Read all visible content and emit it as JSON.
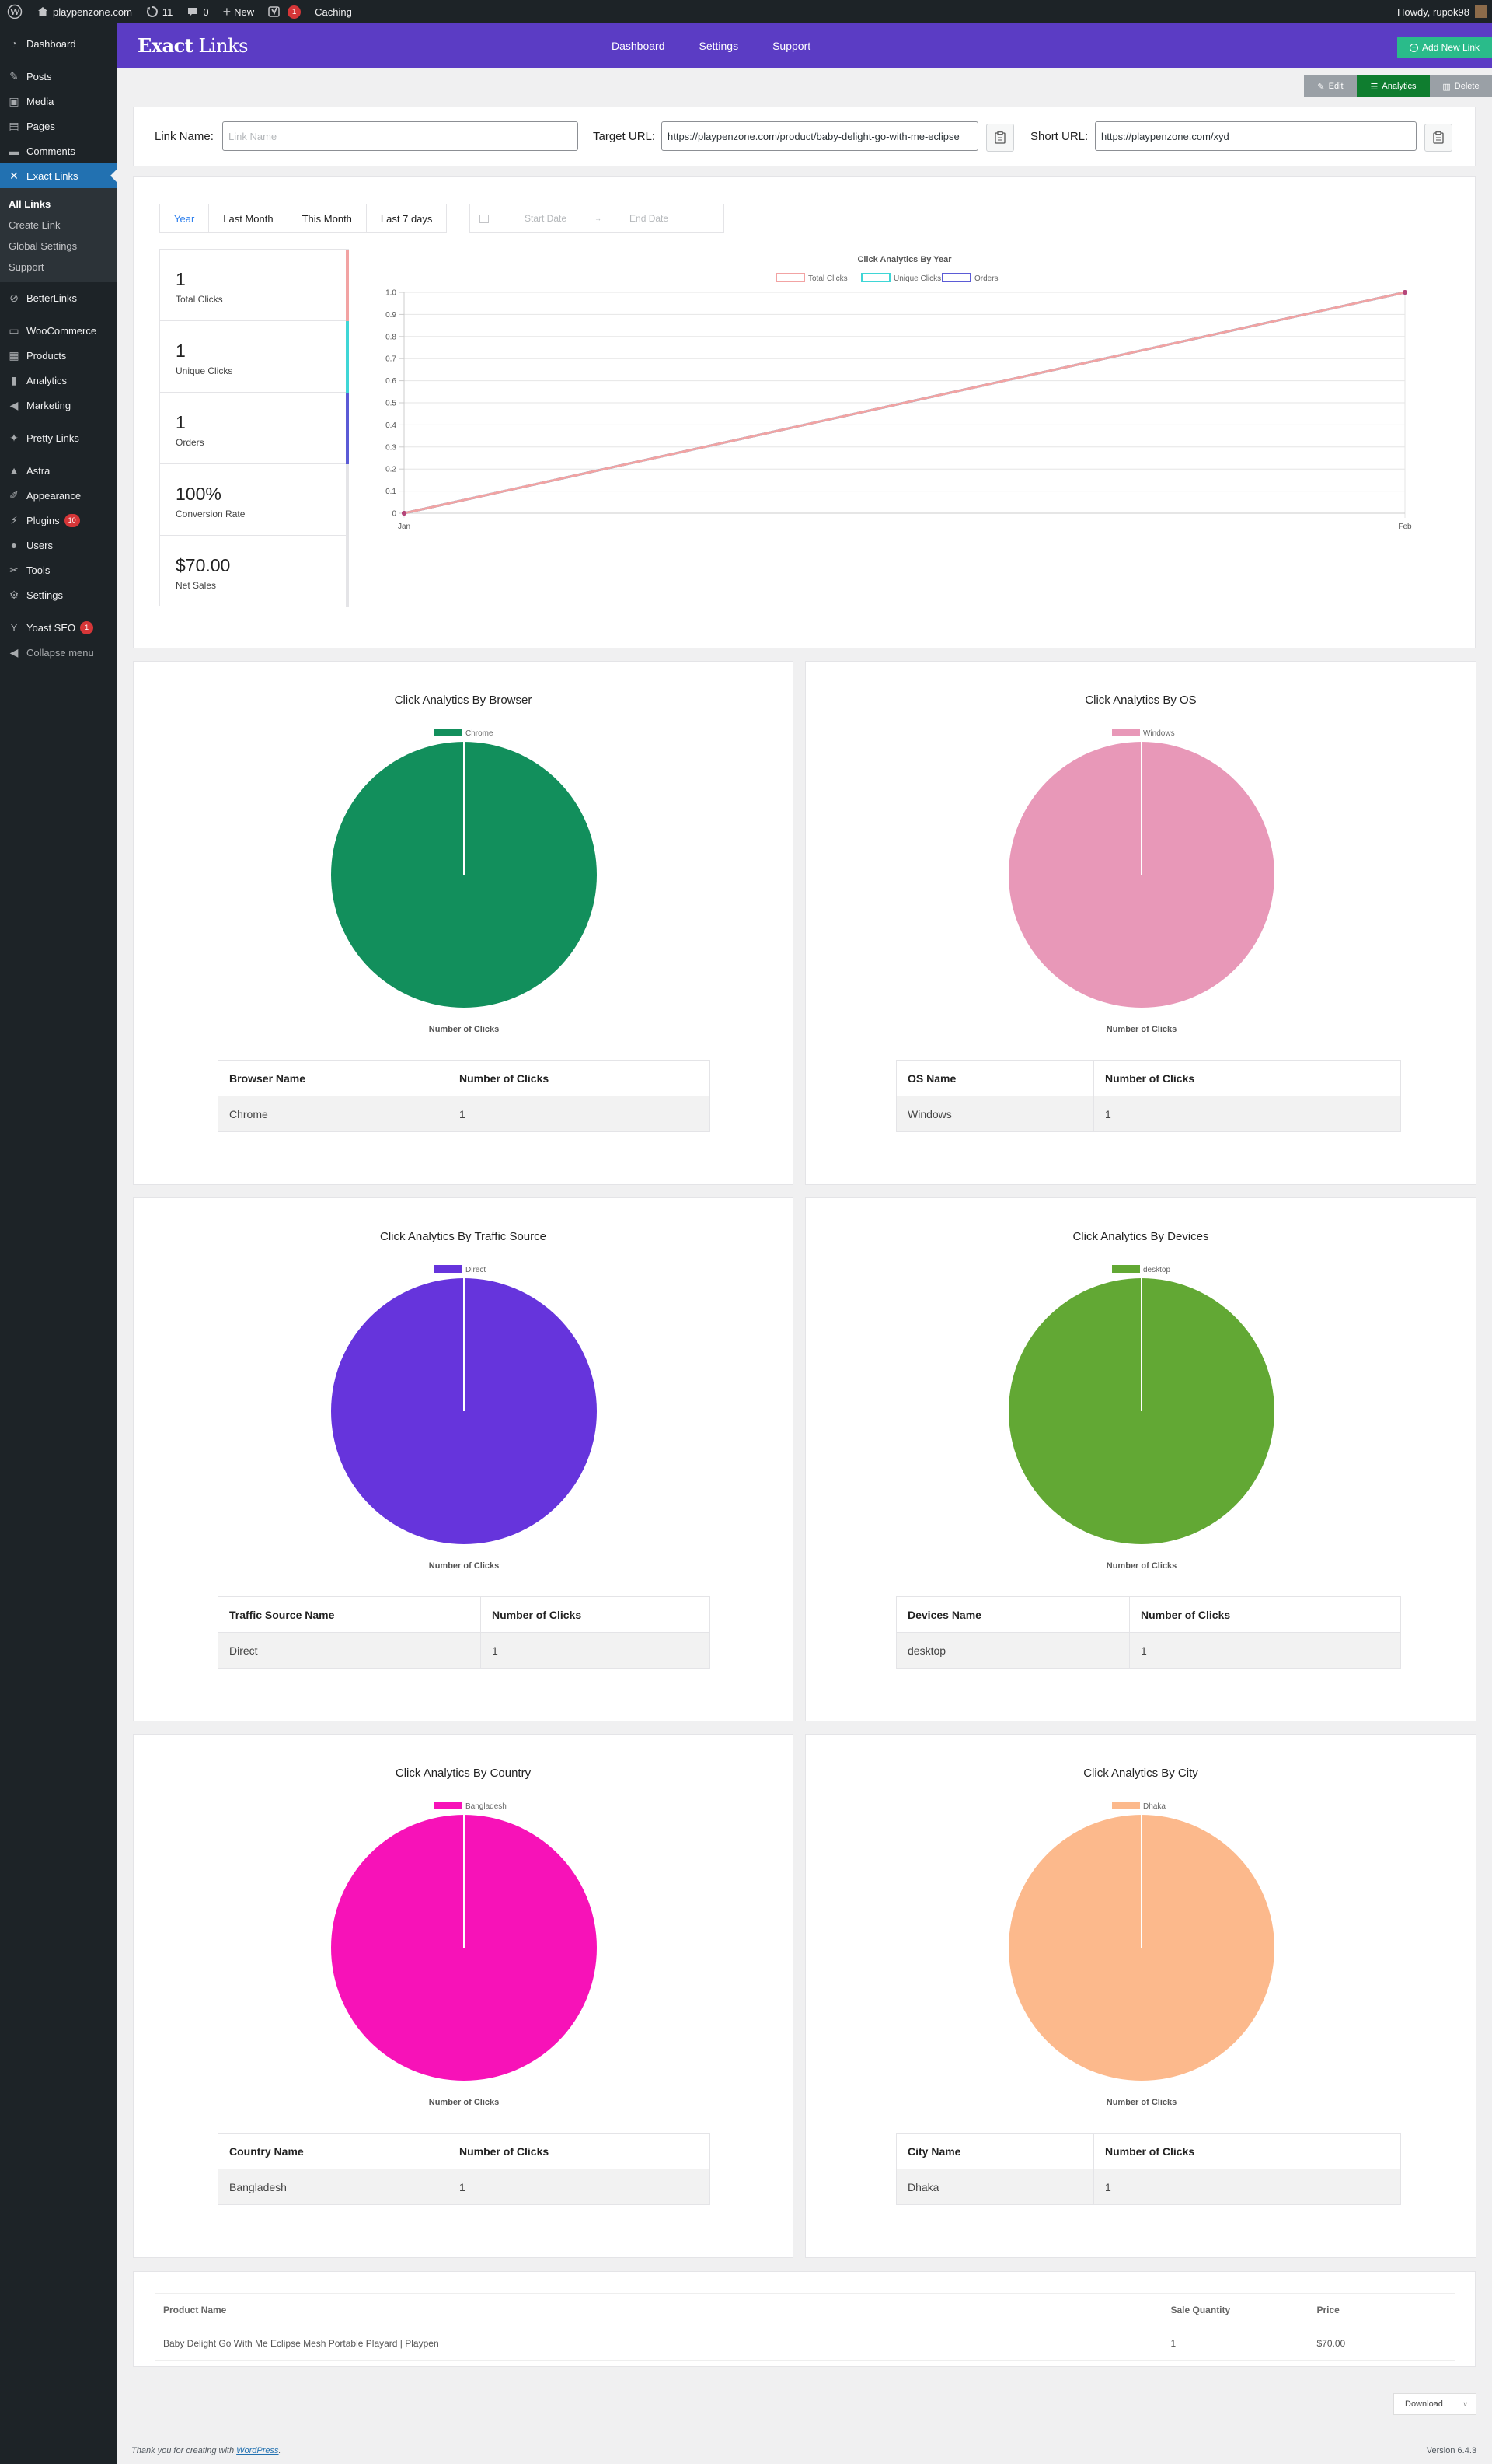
{
  "adminbar": {
    "site_name": "playpenzone.com",
    "updates_count": "11",
    "comments_count": "0",
    "new_label": "New",
    "yoast_count": "1",
    "caching_label": "Caching",
    "howdy": "Howdy, rupok98"
  },
  "sidebar": {
    "items": [
      {
        "label": "Dashboard",
        "icon": "dashboard-icon"
      },
      {
        "label": "Posts",
        "icon": "pin-icon"
      },
      {
        "label": "Media",
        "icon": "media-icon"
      },
      {
        "label": "Pages",
        "icon": "pages-icon"
      },
      {
        "label": "Comments",
        "icon": "comments-icon"
      },
      {
        "label": "Exact Links",
        "icon": "exact-links-icon"
      },
      {
        "label": "BetterLinks",
        "icon": "link-icon"
      },
      {
        "label": "WooCommerce",
        "icon": "woocommerce-icon"
      },
      {
        "label": "Products",
        "icon": "products-icon"
      },
      {
        "label": "Analytics",
        "icon": "analytics-icon"
      },
      {
        "label": "Marketing",
        "icon": "megaphone-icon"
      },
      {
        "label": "Pretty Links",
        "icon": "star-icon"
      },
      {
        "label": "Astra",
        "icon": "astra-icon"
      },
      {
        "label": "Appearance",
        "icon": "brush-icon"
      },
      {
        "label": "Plugins",
        "icon": "plugin-icon",
        "badge": "10"
      },
      {
        "label": "Users",
        "icon": "users-icon"
      },
      {
        "label": "Tools",
        "icon": "tools-icon"
      },
      {
        "label": "Settings",
        "icon": "settings-icon"
      },
      {
        "label": "Yoast SEO",
        "icon": "yoast-icon",
        "badge": "1"
      },
      {
        "label": "Collapse menu",
        "icon": "collapse-icon"
      }
    ],
    "submenu": [
      "All Links",
      "Create Link",
      "Global Settings",
      "Support"
    ]
  },
  "plugin_header": {
    "logo_bold": "Exact",
    "logo_rest": " Links",
    "nav": [
      "Dashboard",
      "Settings",
      "Support"
    ],
    "add_new": "Add New Link"
  },
  "actions": {
    "edit": "Edit",
    "analytics": "Analytics",
    "delete": "Delete"
  },
  "link": {
    "name_label": "Link Name:",
    "name_placeholder": "Link Name",
    "target_label": "Target URL:",
    "target_value": "https://playpenzone.com/product/baby-delight-go-with-me-eclipse",
    "short_label": "Short URL:",
    "short_value": "https://playpenzone.com/xyd"
  },
  "filters": {
    "tabs": [
      "Year",
      "Last Month",
      "This Month",
      "Last 7 days"
    ],
    "start_placeholder": "Start Date",
    "end_placeholder": "End Date"
  },
  "stats": [
    {
      "value": "1",
      "label": "Total Clicks",
      "color": "#f2a3a3"
    },
    {
      "value": "1",
      "label": "Unique Clicks",
      "color": "#3fd6d6"
    },
    {
      "value": "1",
      "label": "Orders",
      "color": "#5b5bd6"
    },
    {
      "value": "100%",
      "label": "Conversion Rate",
      "color": "#e4e4e7"
    },
    {
      "value": "$70.00",
      "label": "Net Sales",
      "color": "#e4e4e7"
    }
  ],
  "chart_data": [
    {
      "type": "line",
      "title": "Click Analytics By Year",
      "categories": [
        "Jan",
        "Feb"
      ],
      "series": [
        {
          "name": "Total Clicks",
          "values": [
            0,
            1
          ],
          "color": "#f2a3a3"
        },
        {
          "name": "Unique Clicks",
          "values": [
            0,
            1
          ],
          "color": "#3fd6d6"
        },
        {
          "name": "Orders",
          "values": [
            0,
            1
          ],
          "color": "#5b5bd6"
        }
      ],
      "ylim": [
        0,
        1.0
      ],
      "yticks": [
        "0",
        "0.1",
        "0.2",
        "0.3",
        "0.4",
        "0.5",
        "0.6",
        "0.7",
        "0.8",
        "0.9",
        "1.0"
      ],
      "legend": "top",
      "grid": true
    },
    {
      "type": "pie",
      "title": "Click Analytics By Browser",
      "categories": [
        "Chrome"
      ],
      "values": [
        1
      ],
      "color": "#128f5c",
      "xlabel": "Number of Clicks",
      "legend": "top",
      "table": {
        "col1": "Browser Name",
        "col2": "Number of Clicks",
        "rows": [
          [
            "Chrome",
            "1"
          ]
        ]
      }
    },
    {
      "type": "pie",
      "title": "Click Analytics By OS",
      "categories": [
        "Windows"
      ],
      "values": [
        1
      ],
      "color": "#e898b8",
      "xlabel": "Number of Clicks",
      "legend": "top",
      "table": {
        "col1": "OS Name",
        "col2": "Number of Clicks",
        "rows": [
          [
            "Windows",
            "1"
          ]
        ]
      }
    },
    {
      "type": "pie",
      "title": "Click Analytics By Traffic Source",
      "categories": [
        "Direct"
      ],
      "values": [
        1
      ],
      "color": "#6634dc",
      "xlabel": "Number of Clicks",
      "legend": "top",
      "table": {
        "col1": "Traffic Source Name",
        "col2": "Number of Clicks",
        "rows": [
          [
            "Direct",
            "1"
          ]
        ]
      }
    },
    {
      "type": "pie",
      "title": "Click Analytics By Devices",
      "categories": [
        "desktop"
      ],
      "values": [
        1
      ],
      "color": "#62a834",
      "xlabel": "Number of Clicks",
      "legend": "top",
      "table": {
        "col1": "Devices Name",
        "col2": "Number of Clicks",
        "rows": [
          [
            "desktop",
            "1"
          ]
        ]
      }
    },
    {
      "type": "pie",
      "title": "Click Analytics By Country",
      "categories": [
        "Bangladesh"
      ],
      "values": [
        1
      ],
      "color": "#f712b8",
      "xlabel": "Number of Clicks",
      "legend": "top",
      "table": {
        "col1": "Country Name",
        "col2": "Number of Clicks",
        "rows": [
          [
            "Bangladesh",
            "1"
          ]
        ]
      }
    },
    {
      "type": "pie",
      "title": "Click Analytics By City",
      "categories": [
        "Dhaka"
      ],
      "values": [
        1
      ],
      "color": "#fcb98c",
      "xlabel": "Number of Clicks",
      "legend": "top",
      "table": {
        "col1": "City Name",
        "col2": "Number of Clicks",
        "rows": [
          [
            "Dhaka",
            "1"
          ]
        ]
      }
    }
  ],
  "products": {
    "headers": [
      "Product Name",
      "Sale Quantity",
      "Price"
    ],
    "rows": [
      [
        "Baby Delight Go With Me Eclipse Mesh Portable Playard | Playpen",
        "1",
        "$70.00"
      ]
    ]
  },
  "download_label": "Download",
  "footer": {
    "thanks_prefix": "Thank you for creating with ",
    "thanks_link": "WordPress",
    "thanks_suffix": ".",
    "version": "Version 6.4.3"
  }
}
